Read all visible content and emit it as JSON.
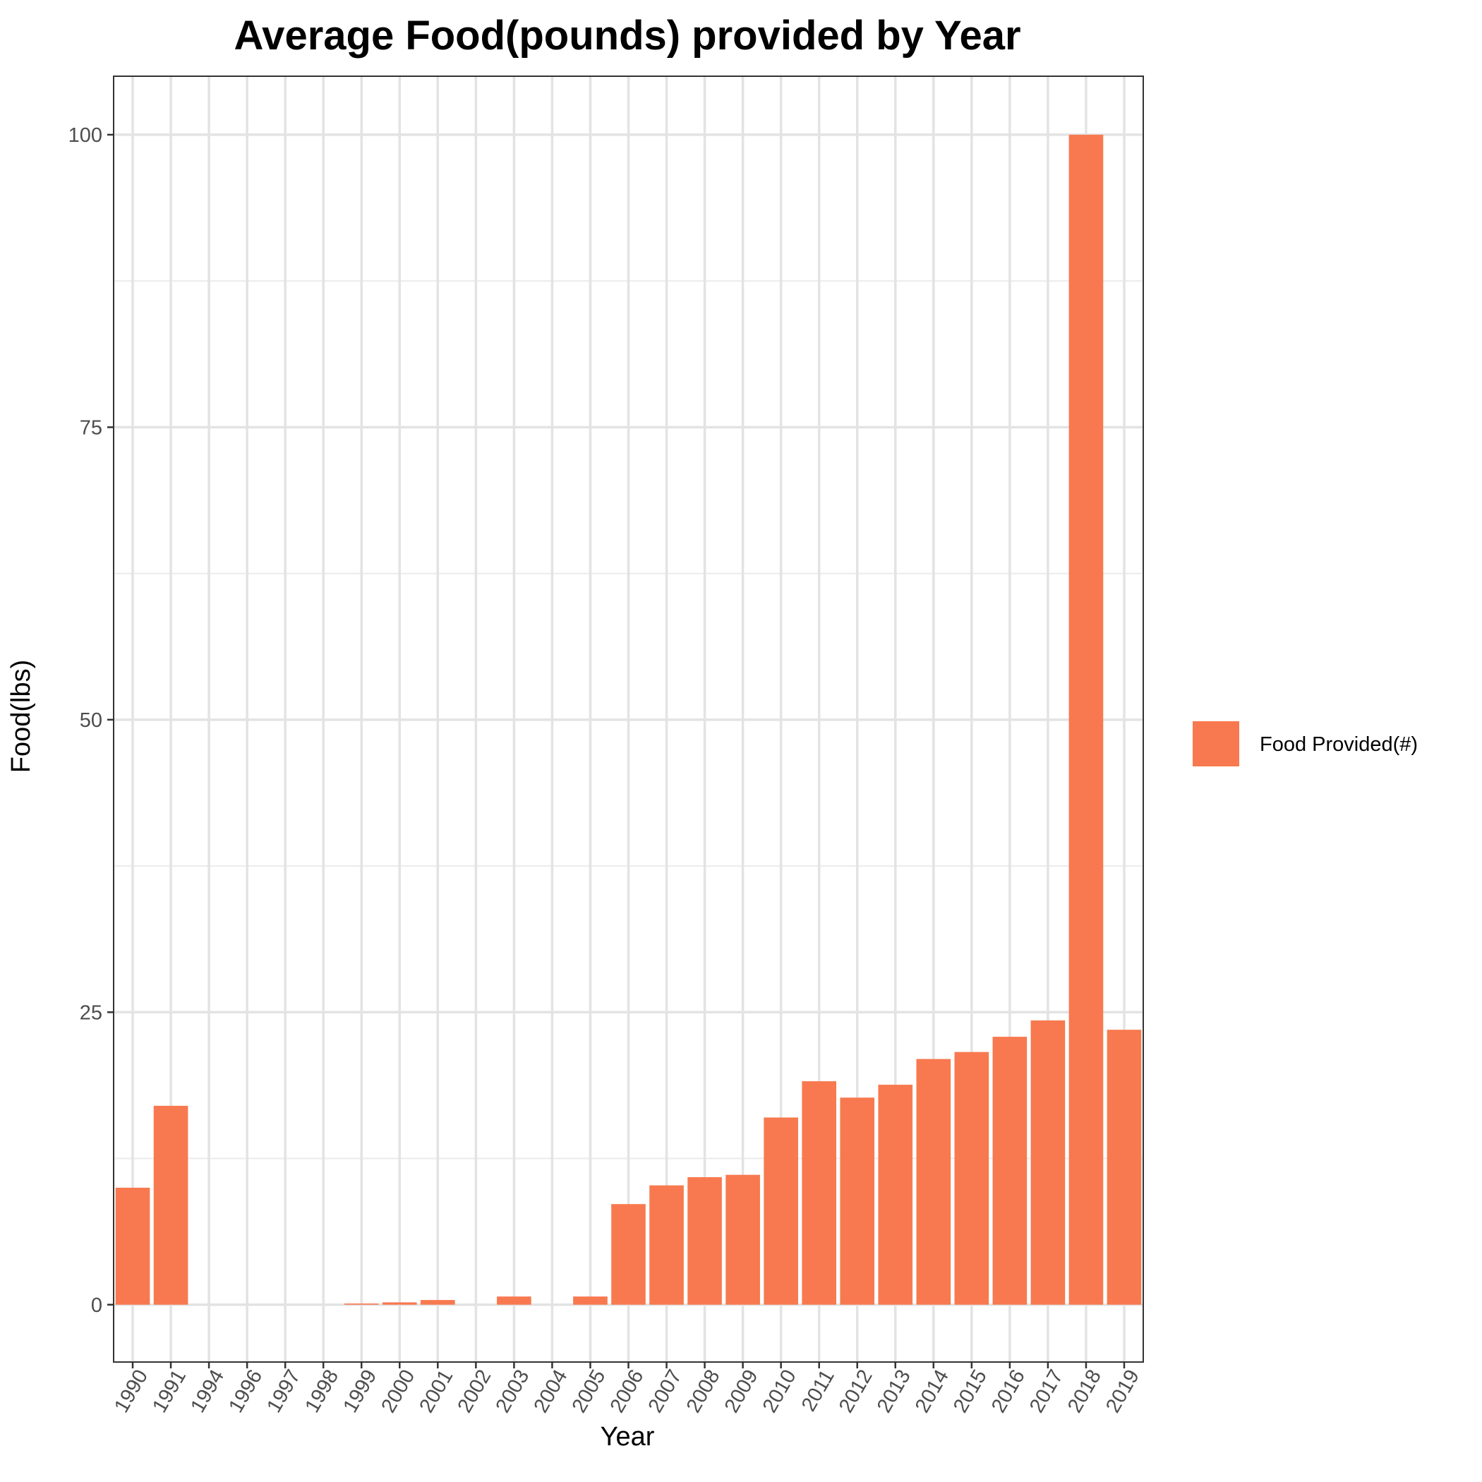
{
  "chart_data": {
    "type": "bar",
    "title": "Average Food(pounds) provided by Year",
    "xlabel": "Year",
    "ylabel": "Food(lbs)",
    "categories": [
      "1990",
      "1991",
      "1994",
      "1996",
      "1997",
      "1998",
      "1999",
      "2000",
      "2001",
      "2002",
      "2003",
      "2004",
      "2005",
      "2006",
      "2007",
      "2008",
      "2009",
      "2010",
      "2011",
      "2012",
      "2013",
      "2014",
      "2015",
      "2016",
      "2017",
      "2018",
      "2019"
    ],
    "series": [
      {
        "name": "Food Provided(#)",
        "color": "#F8794F",
        "values": [
          10,
          17,
          0,
          0,
          0,
          0,
          0.1,
          0.2,
          0.4,
          0,
          0.7,
          0,
          0.7,
          8.6,
          10.2,
          10.9,
          11.1,
          16,
          19.1,
          17.7,
          18.8,
          21,
          21.6,
          22.9,
          24.3,
          100,
          23.5
        ]
      }
    ],
    "yticks": [
      0,
      25,
      50,
      75,
      100
    ],
    "ylim": [
      -4.9,
      105
    ],
    "grid": true,
    "legend_position": "right"
  }
}
